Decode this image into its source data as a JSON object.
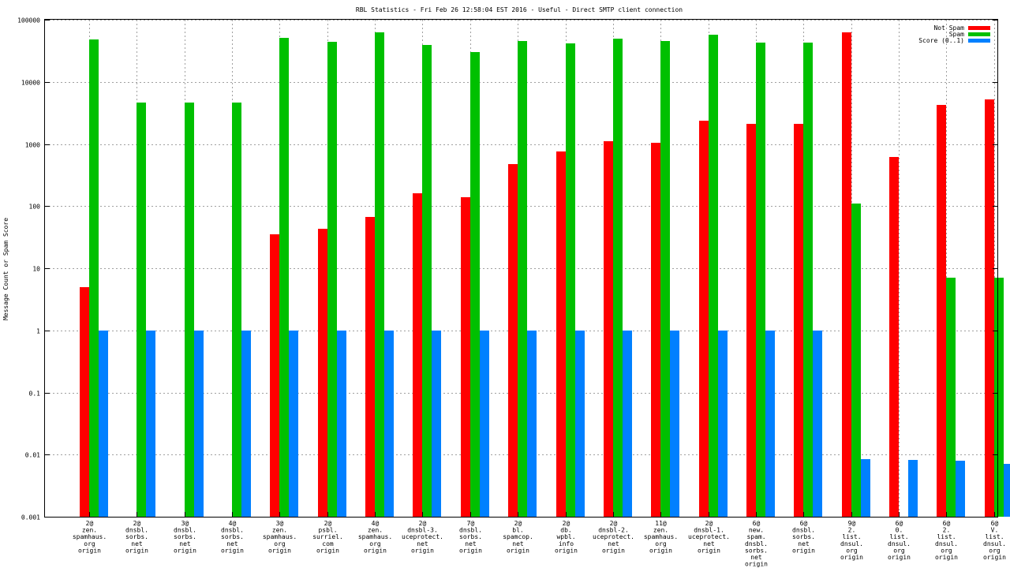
{
  "chart_data": {
    "type": "bar",
    "title": "RBL Statistics - Fri Feb 26 12:58:04 EST 2016 - Useful - Direct SMTP client connection",
    "xlabel": "",
    "ylabel": "Message Count or Spam Score",
    "yscale": "log",
    "ylim": [
      0.001,
      100000
    ],
    "yticks": [
      {
        "value": 0.001,
        "label": "0.001"
      },
      {
        "value": 0.01,
        "label": "0.01"
      },
      {
        "value": 0.1,
        "label": "0.1"
      },
      {
        "value": 1,
        "label": "1"
      },
      {
        "value": 10,
        "label": "10"
      },
      {
        "value": 100,
        "label": "100"
      },
      {
        "value": 1000,
        "label": "1000"
      },
      {
        "value": 10000,
        "label": "10000"
      },
      {
        "value": 100000,
        "label": "100000"
      }
    ],
    "grid": true,
    "legend_position": "top-right",
    "categories": [
      [
        "2@",
        "zen.",
        "spamhaus.",
        "org",
        "origin"
      ],
      [
        "2@",
        "dnsbl.",
        "sorbs.",
        "net",
        "origin"
      ],
      [
        "3@",
        "dnsbl.",
        "sorbs.",
        "net",
        "origin"
      ],
      [
        "4@",
        "dnsbl.",
        "sorbs.",
        "net",
        "origin"
      ],
      [
        "3@",
        "zen.",
        "spamhaus.",
        "org",
        "origin"
      ],
      [
        "2@",
        "psbl.",
        "surriel.",
        "com",
        "origin"
      ],
      [
        "4@",
        "zen.",
        "spamhaus.",
        "org",
        "origin"
      ],
      [
        "2@",
        "dnsbl-3.",
        "uceprotect.",
        "net",
        "origin"
      ],
      [
        "7@",
        "dnsbl.",
        "sorbs.",
        "net",
        "origin"
      ],
      [
        "2@",
        "bl.",
        "spamcop.",
        "net",
        "origin"
      ],
      [
        "2@",
        "db.",
        "wpbl.",
        "info",
        "origin"
      ],
      [
        "2@",
        "dnsbl-2.",
        "uceprotect.",
        "net",
        "origin"
      ],
      [
        "11@",
        "zen.",
        "spamhaus.",
        "org",
        "origin"
      ],
      [
        "2@",
        "dnsbl-1.",
        "uceprotect.",
        "net",
        "origin"
      ],
      [
        "6@",
        "new.",
        "spam.",
        "dnsbl.",
        "sorbs.",
        "net",
        "origin"
      ],
      [
        "6@",
        "dnsbl.",
        "sorbs.",
        "net",
        "origin"
      ],
      [
        "9@",
        "2.",
        "list.",
        "dnsul.",
        "org",
        "origin"
      ],
      [
        "6@",
        "0.",
        "list.",
        "dnsul.",
        "org",
        "origin"
      ],
      [
        "6@",
        "2.",
        "list.",
        "dnsul.",
        "org",
        "origin"
      ],
      [
        "6@",
        "V.",
        "list.",
        "dnsul.",
        "org",
        "origin"
      ]
    ],
    "series": [
      {
        "name": "Not Spam",
        "color": "#ff0000",
        "values": [
          5,
          null,
          null,
          null,
          35,
          43,
          66,
          160,
          140,
          480,
          760,
          1100,
          1050,
          2350,
          2100,
          2100,
          62000,
          610,
          4300,
          5200
        ]
      },
      {
        "name": "Spam",
        "color": "#00c000",
        "values": [
          48000,
          4600,
          4600,
          4600,
          51000,
          44000,
          62000,
          39000,
          30000,
          46000,
          41000,
          49000,
          46000,
          58000,
          43000,
          43000,
          110,
          null,
          7,
          7
        ]
      },
      {
        "name": "Score (0..1)",
        "color": "#0080ff",
        "values": [
          1,
          1,
          1,
          1,
          1,
          1,
          1,
          1,
          1,
          1,
          0.98,
          0.98,
          0.98,
          0.98,
          0.98,
          0.98,
          0.0085,
          0.0082,
          0.008,
          0.007
        ]
      }
    ]
  }
}
